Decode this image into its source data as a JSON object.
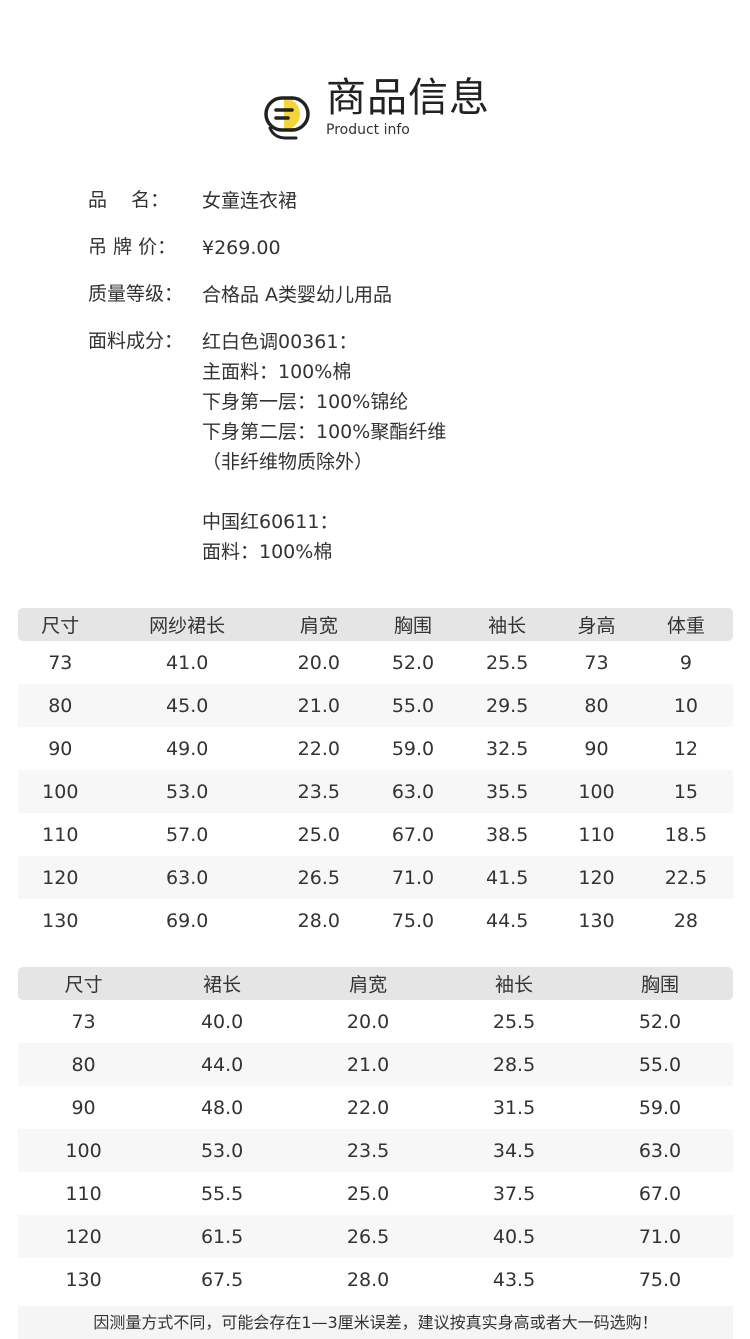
{
  "header": {
    "title": "商品信息",
    "subtitle": "Product info",
    "icon": "list-badge-icon",
    "accent": "#f5d53a"
  },
  "info": [
    {
      "label": "品    名：",
      "lines": [
        "女童连衣裙"
      ]
    },
    {
      "label": "吊 牌 价：",
      "lines": [
        "¥269.00"
      ]
    },
    {
      "label": "质量等级：",
      "lines": [
        "合格品 A类婴幼儿用品"
      ]
    },
    {
      "label": "面料成分：",
      "lines": [
        "红白色调00361：",
        "主面料：100%棉",
        "下身第一层：100%锦纶",
        "下身第二层：100%聚酯纤维",
        "（非纤维物质除外）",
        "",
        "中国红60611：",
        "面料：100%棉"
      ]
    }
  ],
  "table1": {
    "headers": [
      "尺寸",
      "网纱裙长",
      "肩宽",
      "胸围",
      "袖长",
      "身高",
      "体重"
    ],
    "rows": [
      [
        "73",
        "41.0",
        "20.0",
        "52.0",
        "25.5",
        "73",
        "9"
      ],
      [
        "80",
        "45.0",
        "21.0",
        "55.0",
        "29.5",
        "80",
        "10"
      ],
      [
        "90",
        "49.0",
        "22.0",
        "59.0",
        "32.5",
        "90",
        "12"
      ],
      [
        "100",
        "53.0",
        "23.5",
        "63.0",
        "35.5",
        "100",
        "15"
      ],
      [
        "110",
        "57.0",
        "25.0",
        "67.0",
        "38.5",
        "110",
        "18.5"
      ],
      [
        "120",
        "63.0",
        "26.5",
        "71.0",
        "41.5",
        "120",
        "22.5"
      ],
      [
        "130",
        "69.0",
        "28.0",
        "75.0",
        "44.5",
        "130",
        "28"
      ]
    ]
  },
  "table2": {
    "headers": [
      "尺寸",
      "裙长",
      "肩宽",
      "袖长",
      "胸围"
    ],
    "rows": [
      [
        "73",
        "40.0",
        "20.0",
        "25.5",
        "52.0"
      ],
      [
        "80",
        "44.0",
        "21.0",
        "28.5",
        "55.0"
      ],
      [
        "90",
        "48.0",
        "22.0",
        "31.5",
        "59.0"
      ],
      [
        "100",
        "53.0",
        "23.5",
        "34.5",
        "63.0"
      ],
      [
        "110",
        "55.5",
        "25.0",
        "37.5",
        "67.0"
      ],
      [
        "120",
        "61.5",
        "26.5",
        "40.5",
        "71.0"
      ],
      [
        "130",
        "67.5",
        "28.0",
        "43.5",
        "75.0"
      ]
    ]
  },
  "note": "因测量方式不同，可能会存在1—3厘米误差，建议按真实身高或者大一码选购！"
}
